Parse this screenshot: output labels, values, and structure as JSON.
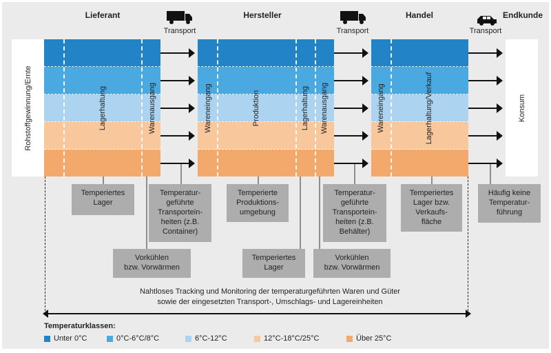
{
  "stages": {
    "lieferant": "Lieferant",
    "hersteller": "Hersteller",
    "handel": "Handel",
    "endkunde": "Endkunde"
  },
  "transport_label": "Transport",
  "start_label": "Rohstoffgewinnung/Ernte",
  "end_label": "Konsum",
  "phases": {
    "l_lager": "Lagerhaltung",
    "l_ausgang": "Warenausgang",
    "h_eingang": "Wareneingang",
    "h_produktion": "Produktion",
    "h_lager": "Lagerhaltung",
    "h_ausgang": "Warenausgang",
    "d_eingang": "Wareneingang",
    "d_lager": "Lagerhaltung/Verkauf"
  },
  "boxes": [
    "Temperiertes\nLager",
    "Temperatur-\ngeführte\nTransportein-\nheiten (z.B.\nContainer)",
    "Vorkühlen\nbzw. Vorwärmen",
    "Temperierte\nProduktions-\numgebung",
    "Temperiertes\nLager",
    "Vorkühlen\nbzw. Vorwärmen",
    "Temperatur-\ngeführte\nTransportein-\nheiten (z.B.\nBehälter)",
    "Temperiertes\nLager bzw.\nVerkaufs-\nfläche",
    "Häufig keine\nTemperatur-\nführung"
  ],
  "note": "Nahtloses Tracking und Monitoring der temperaturgeführten Waren und Güter\nsowie der eingesetzten Transport-, Umschlags- und Lagereinheiten",
  "legend": {
    "title": "Temperaturklassen:",
    "items": [
      {
        "label": "Unter 0°C",
        "color": "#2383c7"
      },
      {
        "label": "0°C-6°C/8°C",
        "color": "#4aa9e0"
      },
      {
        "label": "6°C-12°C",
        "color": "#acd4f0"
      },
      {
        "label": "12°C-18°C/25°C",
        "color": "#f8c89c"
      },
      {
        "label": "Über 25°C",
        "color": "#f4a96c"
      }
    ]
  }
}
